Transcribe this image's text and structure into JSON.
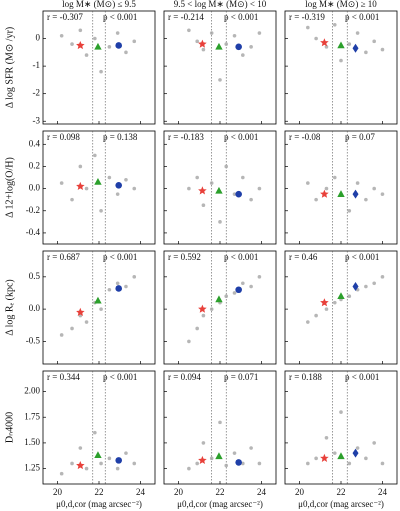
{
  "chart_data": [
    {
      "type": "scatter",
      "title": "log M∗ (M⊙) ≤ 9.5",
      "ylabel": "Δ log SFR (M⊙ /yr)",
      "r_text": "r = -0.307",
      "p_text": "p < 0.001",
      "xlim": [
        19.3,
        24.7
      ],
      "xticks": [
        20,
        22,
        24
      ],
      "ylim": [
        -3.1,
        1.0
      ],
      "yticks": [
        -3,
        -2,
        -1,
        0
      ],
      "yticklabels": true,
      "vlines": [
        21.7,
        22.3
      ],
      "series": [
        {
          "color": "#a9a9a9",
          "marker": "circle",
          "x": [
            20.2,
            20.7,
            21.1,
            21.4,
            21.8,
            22.1,
            22.5,
            22.9,
            23.3,
            23.7
          ],
          "values": [
            0.1,
            -0.2,
            0.3,
            -0.6,
            0.0,
            -1.2,
            -0.3,
            0.2,
            -0.5,
            -0.1
          ]
        },
        {
          "color": "#e8403a",
          "marker": "star",
          "x": [
            21.1
          ],
          "values": [
            -0.25
          ]
        },
        {
          "color": "#2ca02c",
          "marker": "triangle",
          "x": [
            21.95
          ],
          "values": [
            -0.3
          ]
        },
        {
          "color": "#1f3fa8",
          "marker": "circle",
          "x": [
            22.95
          ],
          "values": [
            -0.25
          ]
        }
      ]
    },
    {
      "type": "scatter",
      "title": "9.5 < log M∗ (M⊙) < 10",
      "r_text": "r = -0.214",
      "p_text": "p < 0.001",
      "xlim": [
        19.3,
        24.7
      ],
      "xticks": [
        20,
        22,
        24
      ],
      "ylim": [
        -3.1,
        1.0
      ],
      "yticks": [
        -3,
        -2,
        -1,
        0
      ],
      "vlines": [
        21.6,
        22.3
      ],
      "series": [
        {
          "color": "#a9a9a9",
          "marker": "circle",
          "x": [
            20.5,
            20.9,
            21.2,
            21.6,
            22.0,
            22.3,
            22.7,
            23.1,
            23.5,
            23.9
          ],
          "values": [
            0.3,
            -0.1,
            -0.4,
            0.2,
            -1.5,
            -0.2,
            0.1,
            -0.6,
            -0.3,
            0.2
          ]
        },
        {
          "color": "#e8403a",
          "marker": "star",
          "x": [
            21.15
          ],
          "values": [
            -0.2
          ]
        },
        {
          "color": "#2ca02c",
          "marker": "triangle",
          "x": [
            21.95
          ],
          "values": [
            -0.3
          ]
        },
        {
          "color": "#1f3fa8",
          "marker": "circle",
          "x": [
            22.9
          ],
          "values": [
            -0.3
          ]
        }
      ]
    },
    {
      "type": "scatter",
      "title": "log M∗ (M⊙) ≥ 10",
      "r_text": "r = -0.319",
      "p_text": "p < 0.001",
      "xlim": [
        19.3,
        24.7
      ],
      "xticks": [
        20,
        22,
        24
      ],
      "ylim": [
        -3.1,
        1.0
      ],
      "yticks": [
        -3,
        -2,
        -1,
        0
      ],
      "vlines": [
        21.6,
        22.3
      ],
      "series": [
        {
          "color": "#a9a9a9",
          "marker": "circle",
          "x": [
            20.4,
            20.8,
            21.3,
            21.7,
            22.0,
            22.4,
            22.8,
            23.2,
            23.6,
            24.0
          ],
          "values": [
            0.4,
            0.0,
            -0.3,
            0.5,
            -0.8,
            -0.2,
            0.2,
            -0.5,
            -0.1,
            -0.4
          ]
        },
        {
          "color": "#e8403a",
          "marker": "star",
          "x": [
            21.2
          ],
          "values": [
            -0.15
          ]
        },
        {
          "color": "#2ca02c",
          "marker": "triangle",
          "x": [
            22.0
          ],
          "values": [
            -0.25
          ]
        },
        {
          "color": "#1f3fa8",
          "marker": "diamond",
          "x": [
            22.7
          ],
          "values": [
            -0.35
          ]
        }
      ]
    },
    {
      "type": "scatter",
      "ylabel": "Δ 12+log(O/H)",
      "r_text": "r = 0.098",
      "p_text": "p = 0.138",
      "xlim": [
        19.3,
        24.7
      ],
      "xticks": [
        20,
        22,
        24
      ],
      "ylim": [
        -0.5,
        0.52
      ],
      "yticks": [
        -0.4,
        -0.2,
        {
          "value": 0,
          "label": "0.0"
        },
        0.2,
        0.4
      ],
      "yticklabels": true,
      "vlines": [
        21.7,
        22.3
      ],
      "series": [
        {
          "color": "#a9a9a9",
          "marker": "circle",
          "x": [
            20.2,
            20.7,
            21.1,
            21.4,
            21.8,
            22.1,
            22.5,
            22.9,
            23.3,
            23.7
          ],
          "values": [
            0.05,
            -0.1,
            0.2,
            0.0,
            0.3,
            -0.2,
            0.1,
            -0.05,
            0.08,
            0.0
          ]
        },
        {
          "color": "#e8403a",
          "marker": "star",
          "x": [
            21.1
          ],
          "values": [
            0.02
          ]
        },
        {
          "color": "#2ca02c",
          "marker": "triangle",
          "x": [
            21.95
          ],
          "values": [
            0.06
          ]
        },
        {
          "color": "#1f3fa8",
          "marker": "circle",
          "x": [
            22.95
          ],
          "values": [
            0.03
          ]
        }
      ]
    },
    {
      "type": "scatter",
      "r_text": "r = -0.183",
      "p_text": "p < 0.001",
      "xlim": [
        19.3,
        24.7
      ],
      "xticks": [
        20,
        22,
        24
      ],
      "ylim": [
        -0.5,
        0.52
      ],
      "yticks": [
        -0.4,
        -0.2,
        {
          "value": 0,
          "label": "0.0"
        },
        0.2,
        0.4
      ],
      "vlines": [
        21.6,
        22.3
      ],
      "series": [
        {
          "color": "#a9a9a9",
          "marker": "circle",
          "x": [
            20.5,
            20.9,
            21.2,
            21.6,
            22.0,
            22.3,
            22.7,
            23.1,
            23.5,
            23.9
          ],
          "values": [
            0.0,
            0.1,
            -0.15,
            0.05,
            -0.3,
            0.2,
            -0.05,
            0.1,
            -0.1,
            0.0
          ]
        },
        {
          "color": "#e8403a",
          "marker": "star",
          "x": [
            21.15
          ],
          "values": [
            -0.02
          ]
        },
        {
          "color": "#2ca02c",
          "marker": "triangle",
          "x": [
            21.95
          ],
          "values": [
            -0.02
          ]
        },
        {
          "color": "#1f3fa8",
          "marker": "circle",
          "x": [
            22.9
          ],
          "values": [
            -0.05
          ]
        }
      ]
    },
    {
      "type": "scatter",
      "r_text": "r = -0.08",
      "p_text": "p = 0.07",
      "xlim": [
        19.3,
        24.7
      ],
      "xticks": [
        20,
        22,
        24
      ],
      "ylim": [
        -0.5,
        0.52
      ],
      "yticks": [
        -0.4,
        -0.2,
        {
          "value": 0,
          "label": "0.0"
        },
        0.2,
        0.4
      ],
      "vlines": [
        21.6,
        22.3
      ],
      "series": [
        {
          "color": "#a9a9a9",
          "marker": "circle",
          "x": [
            20.4,
            20.8,
            21.3,
            21.7,
            22.0,
            22.4,
            22.8,
            23.2,
            23.6,
            24.0
          ],
          "values": [
            0.05,
            -0.1,
            0.0,
            0.1,
            -0.05,
            -0.2,
            0.05,
            -0.1,
            0.0,
            -0.05
          ]
        },
        {
          "color": "#e8403a",
          "marker": "star",
          "x": [
            21.2
          ],
          "values": [
            -0.05
          ]
        },
        {
          "color": "#2ca02c",
          "marker": "triangle",
          "x": [
            22.0
          ],
          "values": [
            -0.05
          ]
        },
        {
          "color": "#1f3fa8",
          "marker": "diamond",
          "x": [
            22.7
          ],
          "values": [
            -0.05
          ]
        }
      ]
    },
    {
      "type": "scatter",
      "ylabel": "Δ log Rₑ (kpc)",
      "r_text": "r = 0.687",
      "p_text": "p < 0.001",
      "xlim": [
        19.3,
        24.7
      ],
      "xticks": [
        20,
        22,
        24
      ],
      "ylim": [
        -0.85,
        0.9
      ],
      "yticks": [
        -0.5,
        {
          "value": 0,
          "label": "0.0"
        },
        0.5
      ],
      "yticklabels": true,
      "vlines": [
        21.7,
        22.3
      ],
      "series": [
        {
          "color": "#a9a9a9",
          "marker": "circle",
          "x": [
            20.2,
            20.7,
            21.1,
            21.4,
            21.8,
            22.1,
            22.5,
            22.9,
            23.3,
            23.7
          ],
          "values": [
            -0.4,
            -0.3,
            -0.1,
            -0.2,
            0.1,
            0.0,
            0.3,
            0.4,
            0.35,
            0.5
          ]
        },
        {
          "color": "#e8403a",
          "marker": "star",
          "x": [
            21.1
          ],
          "values": [
            -0.05
          ]
        },
        {
          "color": "#2ca02c",
          "marker": "triangle",
          "x": [
            21.95
          ],
          "values": [
            0.13
          ]
        },
        {
          "color": "#1f3fa8",
          "marker": "circle",
          "x": [
            22.95
          ],
          "values": [
            0.32
          ]
        }
      ]
    },
    {
      "type": "scatter",
      "r_text": "r = 0.592",
      "p_text": "p < 0.001",
      "xlim": [
        19.3,
        24.7
      ],
      "xticks": [
        20,
        22,
        24
      ],
      "ylim": [
        -0.85,
        0.9
      ],
      "yticks": [
        -0.5,
        {
          "value": 0,
          "label": "0.0"
        },
        0.5
      ],
      "vlines": [
        21.6,
        22.3
      ],
      "series": [
        {
          "color": "#a9a9a9",
          "marker": "circle",
          "x": [
            20.5,
            20.9,
            21.2,
            21.6,
            22.0,
            22.3,
            22.7,
            23.1,
            23.5,
            23.9
          ],
          "values": [
            -0.5,
            -0.3,
            -0.1,
            0.0,
            0.1,
            0.2,
            0.25,
            0.4,
            0.35,
            0.5
          ]
        },
        {
          "color": "#e8403a",
          "marker": "star",
          "x": [
            21.15
          ],
          "values": [
            0.0
          ]
        },
        {
          "color": "#2ca02c",
          "marker": "triangle",
          "x": [
            21.95
          ],
          "values": [
            0.15
          ]
        },
        {
          "color": "#1f3fa8",
          "marker": "circle",
          "x": [
            22.9
          ],
          "values": [
            0.3
          ]
        }
      ]
    },
    {
      "type": "scatter",
      "r_text": "r = 0.46",
      "p_text": "p < 0.001",
      "xlim": [
        19.3,
        24.7
      ],
      "xticks": [
        20,
        22,
        24
      ],
      "ylim": [
        -0.85,
        0.9
      ],
      "yticks": [
        -0.5,
        {
          "value": 0,
          "label": "0.0"
        },
        0.5
      ],
      "vlines": [
        21.6,
        22.3
      ],
      "series": [
        {
          "color": "#a9a9a9",
          "marker": "circle",
          "x": [
            20.4,
            20.8,
            21.3,
            21.7,
            22.0,
            22.4,
            22.8,
            23.2,
            23.6,
            24.0
          ],
          "values": [
            -0.2,
            -0.1,
            0.0,
            0.1,
            0.15,
            0.2,
            0.3,
            0.35,
            0.4,
            0.5
          ]
        },
        {
          "color": "#e8403a",
          "marker": "star",
          "x": [
            21.2
          ],
          "values": [
            0.1
          ]
        },
        {
          "color": "#2ca02c",
          "marker": "triangle",
          "x": [
            22.0
          ],
          "values": [
            0.2
          ]
        },
        {
          "color": "#1f3fa8",
          "marker": "diamond",
          "x": [
            22.7
          ],
          "values": [
            0.35
          ]
        }
      ]
    },
    {
      "type": "scatter",
      "ylabel": "Dₙ4000",
      "xlabel": "μ0,d,cor (mag arcsec⁻²)",
      "r_text": "r = 0.344",
      "p_text": "p < 0.001",
      "xlim": [
        19.3,
        24.7
      ],
      "xticks": [
        20,
        22,
        24
      ],
      "ylim": [
        1.1,
        2.2
      ],
      "yticks": [
        1.25,
        {
          "value": 1.5,
          "label": "1.50"
        },
        1.75,
        {
          "value": 2,
          "label": "2.00"
        }
      ],
      "yticklabels": true,
      "vlines": [
        21.7,
        22.3
      ],
      "series": [
        {
          "color": "#a9a9a9",
          "marker": "circle",
          "x": [
            20.2,
            20.7,
            21.1,
            21.4,
            21.8,
            22.1,
            22.5,
            22.9,
            23.3,
            23.7
          ],
          "values": [
            1.2,
            1.3,
            1.45,
            1.25,
            1.6,
            1.3,
            1.35,
            1.25,
            1.4,
            1.3
          ]
        },
        {
          "color": "#e8403a",
          "marker": "star",
          "x": [
            21.1
          ],
          "values": [
            1.28
          ]
        },
        {
          "color": "#2ca02c",
          "marker": "triangle",
          "x": [
            21.95
          ],
          "values": [
            1.38
          ]
        },
        {
          "color": "#1f3fa8",
          "marker": "circle",
          "x": [
            22.95
          ],
          "values": [
            1.33
          ]
        }
      ]
    },
    {
      "type": "scatter",
      "xlabel": "μ0,d,cor (mag arcsec⁻²)",
      "r_text": "r = 0.094",
      "p_text": "p = 0.071",
      "xlim": [
        19.3,
        24.7
      ],
      "xticks": [
        20,
        22,
        24
      ],
      "ylim": [
        1.1,
        2.2
      ],
      "yticks": [
        1.25,
        {
          "value": 1.5,
          "label": "1.50"
        },
        1.75,
        {
          "value": 2,
          "label": "2.00"
        }
      ],
      "vlines": [
        21.6,
        22.3
      ],
      "series": [
        {
          "color": "#a9a9a9",
          "marker": "circle",
          "x": [
            20.5,
            20.9,
            21.2,
            21.6,
            22.0,
            22.3,
            22.7,
            23.1,
            23.5,
            23.9
          ],
          "values": [
            1.25,
            1.3,
            1.5,
            1.35,
            1.7,
            1.28,
            1.4,
            1.3,
            1.45,
            1.3
          ]
        },
        {
          "color": "#e8403a",
          "marker": "star",
          "x": [
            21.15
          ],
          "values": [
            1.33
          ]
        },
        {
          "color": "#2ca02c",
          "marker": "triangle",
          "x": [
            21.95
          ],
          "values": [
            1.37
          ]
        },
        {
          "color": "#1f3fa8",
          "marker": "circle",
          "x": [
            22.9
          ],
          "values": [
            1.31
          ]
        }
      ]
    },
    {
      "type": "scatter",
      "xlabel": "μ0,d,cor (mag arcsec⁻²)",
      "r_text": "r = 0.188",
      "p_text": "p < 0.001",
      "xlim": [
        19.3,
        24.7
      ],
      "xticks": [
        20,
        22,
        24
      ],
      "ylim": [
        1.1,
        2.2
      ],
      "yticks": [
        1.25,
        {
          "value": 1.5,
          "label": "1.50"
        },
        1.75,
        {
          "value": 2,
          "label": "2.00"
        }
      ],
      "vlines": [
        21.6,
        22.3
      ],
      "series": [
        {
          "color": "#a9a9a9",
          "marker": "circle",
          "x": [
            20.4,
            20.8,
            21.3,
            21.7,
            22.0,
            22.4,
            22.8,
            23.2,
            23.6,
            24.0
          ],
          "values": [
            1.3,
            1.35,
            1.55,
            1.4,
            1.8,
            1.3,
            1.45,
            1.35,
            1.5,
            1.3
          ]
        },
        {
          "color": "#e8403a",
          "marker": "star",
          "x": [
            21.2
          ],
          "values": [
            1.35
          ]
        },
        {
          "color": "#2ca02c",
          "marker": "triangle",
          "x": [
            22.0
          ],
          "values": [
            1.37
          ]
        },
        {
          "color": "#1f3fa8",
          "marker": "diamond",
          "x": [
            22.7
          ],
          "values": [
            1.4
          ]
        }
      ]
    }
  ]
}
